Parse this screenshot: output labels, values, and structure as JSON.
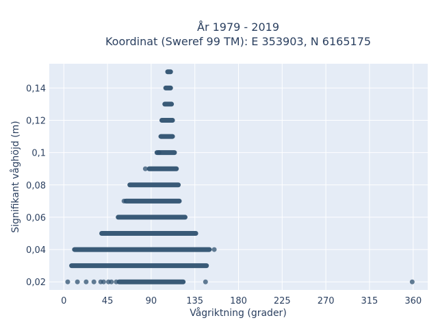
{
  "chart_data": {
    "type": "scatter",
    "title_line1": "År 1979 - 2019",
    "title_line2": "Koordinat (Sweref 99 TM): E 353903, N 6165175",
    "xlabel": "Vågriktning (grader)",
    "ylabel": "Signifikant våghöjd (m)",
    "xlim": [
      -15,
      375
    ],
    "ylim": [
      0.015,
      0.155
    ],
    "xticks": [
      0,
      45,
      90,
      135,
      180,
      225,
      270,
      315,
      360
    ],
    "xtick_labels": [
      "0",
      "45",
      "90",
      "135",
      "180",
      "225",
      "270",
      "315",
      "360"
    ],
    "yticks": [
      0.02,
      0.04,
      0.06,
      0.08,
      0.1,
      0.12,
      0.14
    ],
    "ytick_labels": [
      "0,02",
      "0,04",
      "0,06",
      "0,08",
      "0,1",
      "0,12",
      "0,14"
    ],
    "grid": true,
    "plot_background": "#e5ecf6",
    "grid_color": "#ffffff",
    "marker_color": "#2f5270",
    "bands": [
      {
        "y": 0.02,
        "xmin": 57,
        "xmax": 123
      },
      {
        "y": 0.03,
        "xmin": 8,
        "xmax": 147
      },
      {
        "y": 0.04,
        "xmin": 11,
        "xmax": 150
      },
      {
        "y": 0.05,
        "xmin": 39,
        "xmax": 136
      },
      {
        "y": 0.06,
        "xmin": 56,
        "xmax": 125
      },
      {
        "y": 0.07,
        "xmin": 64,
        "xmax": 119
      },
      {
        "y": 0.08,
        "xmin": 68,
        "xmax": 118
      },
      {
        "y": 0.09,
        "xmin": 88,
        "xmax": 116
      },
      {
        "y": 0.1,
        "xmin": 96,
        "xmax": 114
      },
      {
        "y": 0.11,
        "xmin": 100,
        "xmax": 112
      },
      {
        "y": 0.12,
        "xmin": 101,
        "xmax": 112
      },
      {
        "y": 0.13,
        "xmin": 104,
        "xmax": 111
      },
      {
        "y": 0.14,
        "xmin": 105,
        "xmax": 110
      },
      {
        "y": 0.15,
        "xmin": 107,
        "xmax": 110
      }
    ],
    "points": [
      {
        "x": 4,
        "y": 0.02
      },
      {
        "x": 14,
        "y": 0.02
      },
      {
        "x": 23,
        "y": 0.02
      },
      {
        "x": 31,
        "y": 0.02
      },
      {
        "x": 38,
        "y": 0.02
      },
      {
        "x": 41,
        "y": 0.02
      },
      {
        "x": 46,
        "y": 0.02
      },
      {
        "x": 49,
        "y": 0.02
      },
      {
        "x": 54,
        "y": 0.02
      },
      {
        "x": 146,
        "y": 0.02
      },
      {
        "x": 359,
        "y": 0.02
      },
      {
        "x": 155,
        "y": 0.04
      },
      {
        "x": 98,
        "y": 0.1
      },
      {
        "x": 84,
        "y": 0.09
      },
      {
        "x": 62,
        "y": 0.07
      }
    ]
  }
}
